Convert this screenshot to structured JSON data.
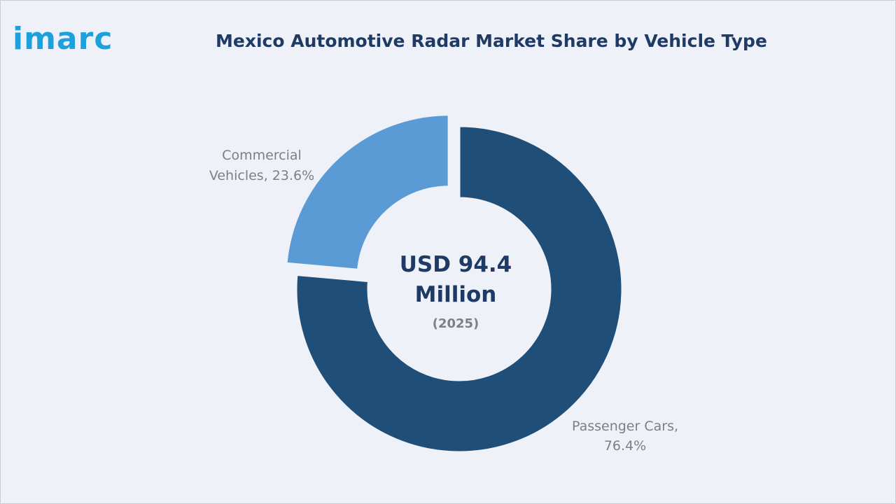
{
  "brand": {
    "logo_text": "imarc",
    "color": "#1ea0dc"
  },
  "title": "Mexico Automotive Radar Market Share by Vehicle Type",
  "chart_data": {
    "type": "pie",
    "donut": true,
    "title": "Mexico Automotive Radar Market Share by Vehicle Type",
    "center_label": {
      "line1": "USD 94.4",
      "line2": "Million",
      "year": "(2025)"
    },
    "slices": [
      {
        "label_line1": "Passenger Cars,",
        "label_line2": "76.4%",
        "value": 76.4,
        "color": "#1f4e79",
        "exploded": false
      },
      {
        "label_line1": "Commercial",
        "label_line2": "Vehicles, 23.6%",
        "value": 23.6,
        "color": "#5b9bd5",
        "exploded": true
      }
    ]
  }
}
